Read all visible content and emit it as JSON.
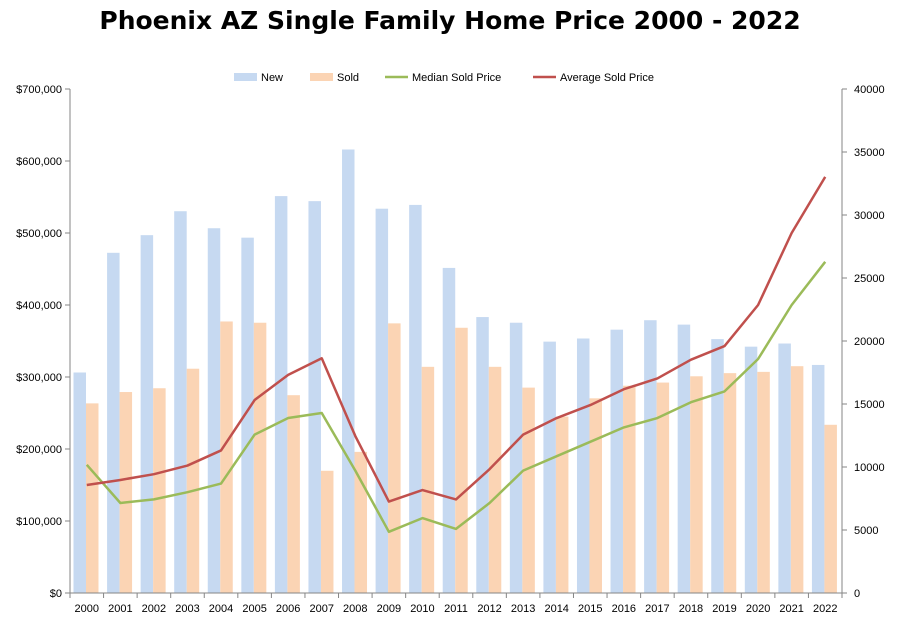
{
  "chart_data": {
    "type": "bar",
    "title": "Phoenix AZ Single Family Home Price 2000 - 2022",
    "categories": [
      "2000",
      "2001",
      "2002",
      "2003",
      "2004",
      "2005",
      "2006",
      "2007",
      "2008",
      "2009",
      "2010",
      "2011",
      "2012",
      "2013",
      "2014",
      "2015",
      "2016",
      "2017",
      "2018",
      "2019",
      "2020",
      "2021",
      "2022"
    ],
    "series": [
      {
        "name": "New",
        "kind": "bar",
        "axis": "right",
        "color": "#c6d9f1",
        "values": [
          17500,
          27000,
          28400,
          30300,
          28950,
          28200,
          31500,
          31100,
          35200,
          30500,
          30800,
          25800,
          21900,
          21450,
          19950,
          20200,
          20900,
          21650,
          21300,
          20150,
          19550,
          19800,
          18100
        ]
      },
      {
        "name": "Sold",
        "kind": "bar",
        "axis": "right",
        "color": "#fbd4b4",
        "values": [
          15050,
          15950,
          16250,
          17800,
          21550,
          21450,
          15700,
          9700,
          11200,
          21400,
          17950,
          21050,
          17950,
          16300,
          14000,
          15450,
          16450,
          16700,
          17200,
          17450,
          17550,
          18000,
          13350
        ]
      },
      {
        "name": "Median Sold Price",
        "kind": "line",
        "axis": "left",
        "color": "#9bbb59",
        "values": [
          178000,
          125000,
          130000,
          140000,
          152000,
          220000,
          243000,
          250000,
          170000,
          85000,
          104000,
          89000,
          125000,
          170000,
          190000,
          210000,
          230000,
          243000,
          265000,
          280000,
          325000,
          400000,
          460000
        ]
      },
      {
        "name": "Average Sold Price",
        "kind": "line",
        "axis": "left",
        "color": "#c0504d",
        "values": [
          150000,
          157000,
          165000,
          177000,
          198000,
          268000,
          303000,
          326000,
          218000,
          127000,
          143000,
          130000,
          172000,
          220000,
          243000,
          261000,
          283000,
          298000,
          324000,
          343000,
          400000,
          500000,
          578000
        ]
      }
    ],
    "y_left": {
      "min": 0,
      "max": 700000,
      "step": 100000,
      "tick_labels": [
        "$0",
        "$100,000",
        "$200,000",
        "$300,000",
        "$400,000",
        "$500,000",
        "$600,000",
        "$700,000"
      ]
    },
    "y_right": {
      "min": 0,
      "max": 40000,
      "step": 5000,
      "tick_labels": [
        "0",
        "5000",
        "10000",
        "15000",
        "20000",
        "25000",
        "30000",
        "35000",
        "40000"
      ]
    },
    "grid": false,
    "legend_position": "top"
  }
}
